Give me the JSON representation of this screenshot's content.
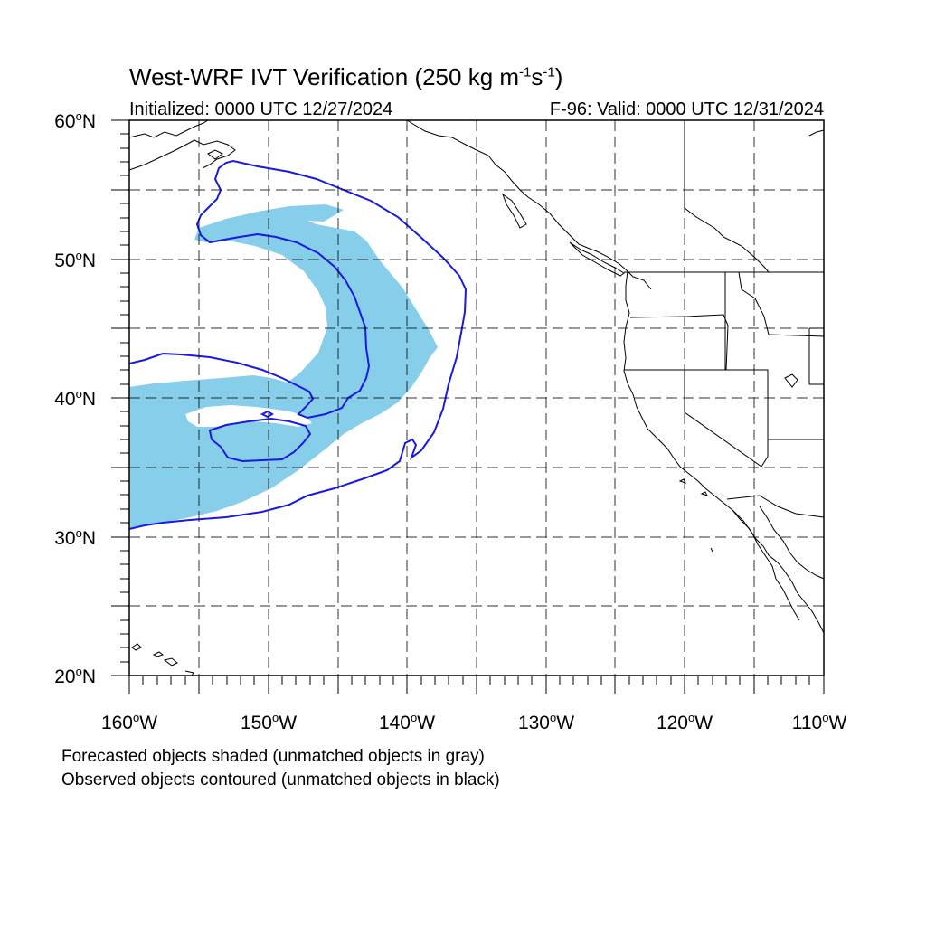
{
  "title": {
    "prefix": "West-WRF IVT Verification (250 kg m",
    "exp1": "-1",
    "mid": "s",
    "exp2": "-1",
    "suffix": ")"
  },
  "initialized": "Initialized: 0000 UTC 12/27/2024",
  "valid": "F-96: Valid: 0000 UTC 12/31/2024",
  "lat_labels": [
    {
      "value": "60",
      "hemi": "N"
    },
    {
      "value": "50",
      "hemi": "N"
    },
    {
      "value": "40",
      "hemi": "N"
    },
    {
      "value": "30",
      "hemi": "N"
    },
    {
      "value": "20",
      "hemi": "N"
    }
  ],
  "lon_labels": [
    {
      "value": "160",
      "hemi": "W"
    },
    {
      "value": "150",
      "hemi": "W"
    },
    {
      "value": "140",
      "hemi": "W"
    },
    {
      "value": "130",
      "hemi": "W"
    },
    {
      "value": "120",
      "hemi": "W"
    },
    {
      "value": "110",
      "hemi": "W"
    }
  ],
  "caption_forecast": "Forecasted objects shaded (unmatched objects in gray)",
  "caption_observed": "Observed objects contoured (unmatched objects in black)",
  "colors": {
    "forecast_fill": "#87ceeb",
    "observed_contour": "#1a1adf",
    "coast": "#000000",
    "grid": "#000000"
  },
  "map_extent": {
    "lon_min": -160,
    "lon_max": -110,
    "lat_min": 20,
    "lat_max": 60
  }
}
